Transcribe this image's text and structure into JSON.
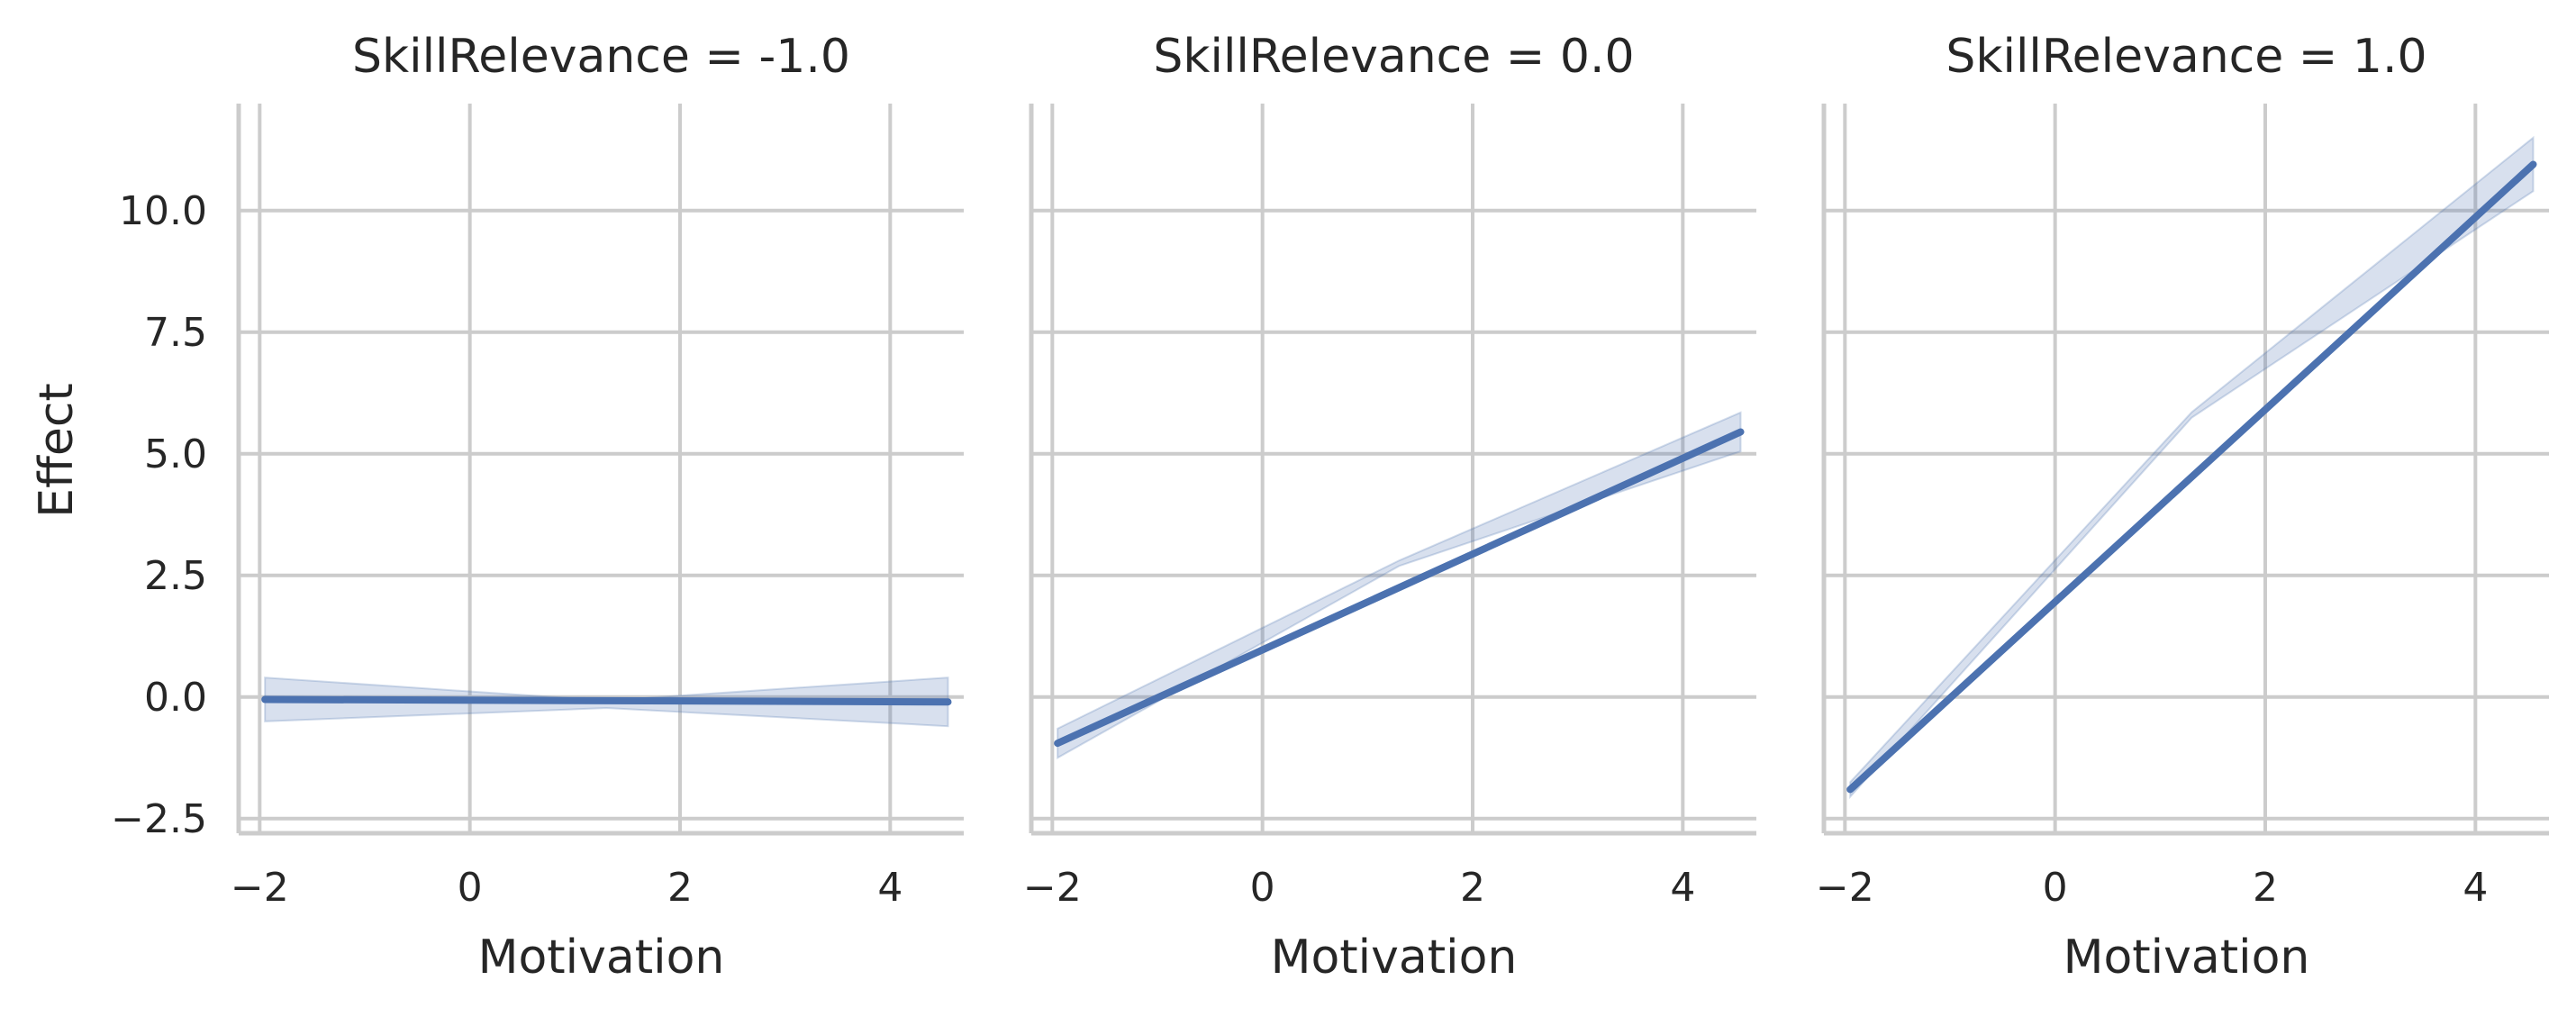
{
  "chart_data": {
    "type": "line",
    "shared": {
      "xlabel": "Motivation",
      "ylabel": "Effect",
      "xlim": [
        -2.2,
        4.7
      ],
      "ylim": [
        -2.8,
        12.2
      ],
      "xticks": [
        -2,
        0,
        2,
        4
      ],
      "xtick_labels": [
        "−2",
        "0",
        "2",
        "4"
      ],
      "yticks": [
        -2.5,
        0.0,
        2.5,
        5.0,
        7.5,
        10.0
      ],
      "ytick_labels": [
        "−2.5",
        "0.0",
        "2.5",
        "5.0",
        "7.5",
        "10.0"
      ],
      "grid": true,
      "color": "#4c72b0"
    },
    "panels": [
      {
        "title": "SkillRelevance = -1.0",
        "x": [
          -1.95,
          4.55
        ],
        "y": [
          -0.05,
          -0.1
        ],
        "ci_lower": [
          -0.5,
          -0.6
        ],
        "ci_mid": -0.15,
        "ci_upper": [
          0.4,
          0.4
        ]
      },
      {
        "title": "SkillRelevance = 0.0",
        "x": [
          -1.95,
          4.55
        ],
        "y": [
          -0.95,
          5.45
        ],
        "ci_lower": [
          -1.25,
          5.05
        ],
        "ci_mid": 2.75,
        "ci_upper": [
          -0.65,
          5.85
        ]
      },
      {
        "title": "SkillRelevance = 1.0",
        "x": [
          -1.95,
          4.55
        ],
        "y": [
          -1.9,
          10.95
        ],
        "ci_lower": [
          -2.05,
          10.4
        ],
        "ci_mid": 5.8,
        "ci_upper": [
          -1.75,
          11.5
        ]
      }
    ]
  }
}
